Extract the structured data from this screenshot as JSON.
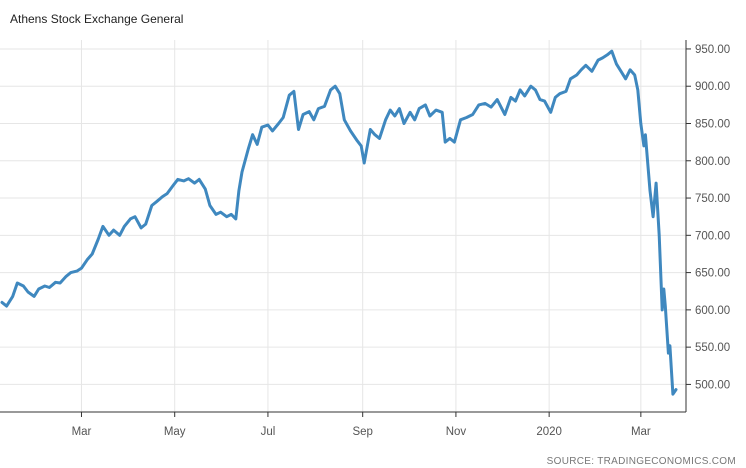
{
  "page": {
    "title": "Athens Stock Exchange General",
    "source": "SOURCE: TRADINGECONOMICS.COM"
  },
  "colors": {
    "line": "#3f88bf",
    "grid": "#e6e6e6",
    "axis": "#333333",
    "text": "#555555"
  },
  "chart_data": {
    "type": "line",
    "title": "Athens Stock Exchange General",
    "xlabel": "",
    "ylabel": "",
    "ylim": [
      463,
      962
    ],
    "grid": true,
    "y_ticks": [
      {
        "value": 950,
        "label": "950.00"
      },
      {
        "value": 900,
        "label": "900.00"
      },
      {
        "value": 850,
        "label": "850.00"
      },
      {
        "value": 800,
        "label": "800.00"
      },
      {
        "value": 750,
        "label": "750.00"
      },
      {
        "value": 700,
        "label": "700.00"
      },
      {
        "value": 650,
        "label": "650.00"
      },
      {
        "value": 600,
        "label": "600.00"
      },
      {
        "value": 550,
        "label": "550.00"
      },
      {
        "value": 500,
        "label": "500.00"
      }
    ],
    "x_ticks": [
      {
        "date": "2019-03-01",
        "label": "Mar"
      },
      {
        "date": "2019-05-01",
        "label": "May"
      },
      {
        "date": "2019-07-01",
        "label": "Jul"
      },
      {
        "date": "2019-09-01",
        "label": "Sep"
      },
      {
        "date": "2019-11-01",
        "label": "Nov"
      },
      {
        "date": "2020-01-01",
        "label": "2020"
      },
      {
        "date": "2020-03-01",
        "label": "Mar"
      }
    ],
    "x_range": [
      "2019-01-08",
      "2020-03-24"
    ],
    "series": [
      {
        "points": [
          [
            "2019-01-08",
            610
          ],
          [
            "2019-01-11",
            605
          ],
          [
            "2019-01-15",
            618
          ],
          [
            "2019-01-18",
            636
          ],
          [
            "2019-01-22",
            632
          ],
          [
            "2019-01-25",
            624
          ],
          [
            "2019-01-29",
            618
          ],
          [
            "2019-02-01",
            628
          ],
          [
            "2019-02-05",
            632
          ],
          [
            "2019-02-08",
            630
          ],
          [
            "2019-02-12",
            637
          ],
          [
            "2019-02-15",
            636
          ],
          [
            "2019-02-19",
            645
          ],
          [
            "2019-02-22",
            650
          ],
          [
            "2019-02-26",
            652
          ],
          [
            "2019-03-01",
            656
          ],
          [
            "2019-03-05",
            668
          ],
          [
            "2019-03-08",
            675
          ],
          [
            "2019-03-12",
            695
          ],
          [
            "2019-03-15",
            712
          ],
          [
            "2019-03-19",
            700
          ],
          [
            "2019-03-22",
            707
          ],
          [
            "2019-03-26",
            700
          ],
          [
            "2019-03-29",
            712
          ],
          [
            "2019-04-02",
            722
          ],
          [
            "2019-04-05",
            725
          ],
          [
            "2019-04-09",
            710
          ],
          [
            "2019-04-12",
            715
          ],
          [
            "2019-04-16",
            740
          ],
          [
            "2019-04-19",
            745
          ],
          [
            "2019-04-23",
            752
          ],
          [
            "2019-04-26",
            756
          ],
          [
            "2019-04-30",
            767
          ],
          [
            "2019-05-03",
            775
          ],
          [
            "2019-05-07",
            773
          ],
          [
            "2019-05-10",
            776
          ],
          [
            "2019-05-14",
            770
          ],
          [
            "2019-05-17",
            775
          ],
          [
            "2019-05-21",
            762
          ],
          [
            "2019-05-24",
            740
          ],
          [
            "2019-05-28",
            728
          ],
          [
            "2019-05-31",
            731
          ],
          [
            "2019-06-04",
            725
          ],
          [
            "2019-06-07",
            728
          ],
          [
            "2019-06-10",
            722
          ],
          [
            "2019-06-12",
            760
          ],
          [
            "2019-06-14",
            785
          ],
          [
            "2019-06-18",
            815
          ],
          [
            "2019-06-21",
            835
          ],
          [
            "2019-06-24",
            822
          ],
          [
            "2019-06-27",
            845
          ],
          [
            "2019-07-01",
            848
          ],
          [
            "2019-07-04",
            840
          ],
          [
            "2019-07-08",
            850
          ],
          [
            "2019-07-11",
            858
          ],
          [
            "2019-07-15",
            888
          ],
          [
            "2019-07-18",
            893
          ],
          [
            "2019-07-21",
            842
          ],
          [
            "2019-07-24",
            862
          ],
          [
            "2019-07-28",
            866
          ],
          [
            "2019-07-31",
            855
          ],
          [
            "2019-08-03",
            870
          ],
          [
            "2019-08-07",
            873
          ],
          [
            "2019-08-11",
            895
          ],
          [
            "2019-08-14",
            900
          ],
          [
            "2019-08-17",
            890
          ],
          [
            "2019-08-20",
            855
          ],
          [
            "2019-08-24",
            840
          ],
          [
            "2019-08-28",
            828
          ],
          [
            "2019-08-31",
            820
          ],
          [
            "2019-09-02",
            797
          ],
          [
            "2019-09-06",
            842
          ],
          [
            "2019-09-09",
            835
          ],
          [
            "2019-09-12",
            830
          ],
          [
            "2019-09-16",
            855
          ],
          [
            "2019-09-19",
            868
          ],
          [
            "2019-09-22",
            860
          ],
          [
            "2019-09-25",
            870
          ],
          [
            "2019-09-28",
            850
          ],
          [
            "2019-10-02",
            865
          ],
          [
            "2019-10-05",
            855
          ],
          [
            "2019-10-08",
            870
          ],
          [
            "2019-10-12",
            875
          ],
          [
            "2019-10-15",
            860
          ],
          [
            "2019-10-19",
            868
          ],
          [
            "2019-10-23",
            865
          ],
          [
            "2019-10-25",
            825
          ],
          [
            "2019-10-28",
            830
          ],
          [
            "2019-10-31",
            825
          ],
          [
            "2019-11-04",
            855
          ],
          [
            "2019-11-08",
            858
          ],
          [
            "2019-11-12",
            862
          ],
          [
            "2019-11-16",
            875
          ],
          [
            "2019-11-20",
            877
          ],
          [
            "2019-11-24",
            872
          ],
          [
            "2019-11-28",
            882
          ],
          [
            "2019-12-01",
            870
          ],
          [
            "2019-12-03",
            862
          ],
          [
            "2019-12-07",
            885
          ],
          [
            "2019-12-10",
            880
          ],
          [
            "2019-12-13",
            895
          ],
          [
            "2019-12-16",
            887
          ],
          [
            "2019-12-20",
            900
          ],
          [
            "2019-12-23",
            895
          ],
          [
            "2019-12-26",
            882
          ],
          [
            "2019-12-29",
            880
          ],
          [
            "2020-01-02",
            865
          ],
          [
            "2020-01-05",
            885
          ],
          [
            "2020-01-08",
            890
          ],
          [
            "2020-01-12",
            893
          ],
          [
            "2020-01-15",
            910
          ],
          [
            "2020-01-19",
            915
          ],
          [
            "2020-01-22",
            922
          ],
          [
            "2020-01-25",
            928
          ],
          [
            "2020-01-29",
            920
          ],
          [
            "2020-02-02",
            935
          ],
          [
            "2020-02-05",
            938
          ],
          [
            "2020-02-08",
            942
          ],
          [
            "2020-02-11",
            947
          ],
          [
            "2020-02-14",
            930
          ],
          [
            "2020-02-17",
            920
          ],
          [
            "2020-02-20",
            910
          ],
          [
            "2020-02-23",
            922
          ],
          [
            "2020-02-26",
            915
          ],
          [
            "2020-02-28",
            895
          ],
          [
            "2020-03-01",
            850
          ],
          [
            "2020-03-03",
            820
          ],
          [
            "2020-03-04",
            835
          ],
          [
            "2020-03-07",
            760
          ],
          [
            "2020-03-09",
            725
          ],
          [
            "2020-03-11",
            770
          ],
          [
            "2020-03-13",
            700
          ],
          [
            "2020-03-15",
            600
          ],
          [
            "2020-03-16",
            628
          ],
          [
            "2020-03-17",
            605
          ],
          [
            "2020-03-19",
            542
          ],
          [
            "2020-03-20",
            552
          ],
          [
            "2020-03-22",
            487
          ],
          [
            "2020-03-24",
            493
          ]
        ]
      }
    ]
  }
}
